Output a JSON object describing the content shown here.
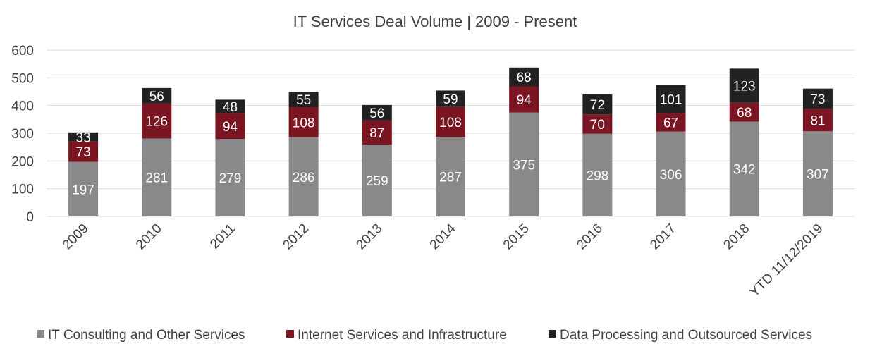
{
  "chart_data": {
    "type": "bar",
    "stacked": true,
    "title": "IT Services Deal Volume | 2009 - Present",
    "categories": [
      "2009",
      "2010",
      "2011",
      "2012",
      "2013",
      "2014",
      "2015",
      "2016",
      "2017",
      "2018",
      "YTD 11/12/2019"
    ],
    "series": [
      {
        "name": "IT Consulting and Other Services",
        "color": "#898989",
        "values": [
          197,
          281,
          279,
          286,
          259,
          287,
          375,
          298,
          306,
          342,
          307
        ]
      },
      {
        "name": "Internet Services and Infrastructure",
        "color": "#7b1521",
        "values": [
          73,
          126,
          94,
          108,
          87,
          108,
          94,
          70,
          67,
          68,
          81
        ]
      },
      {
        "name": "Data Processing and Outsourced Services",
        "color": "#222222",
        "values": [
          33,
          56,
          48,
          55,
          56,
          59,
          68,
          72,
          101,
          123,
          73
        ]
      }
    ],
    "ylim": [
      0,
      600
    ],
    "yticks": [
      0,
      100,
      200,
      300,
      400,
      500,
      600
    ],
    "grid": true,
    "legend_position": "bottom",
    "data_labels": true
  }
}
